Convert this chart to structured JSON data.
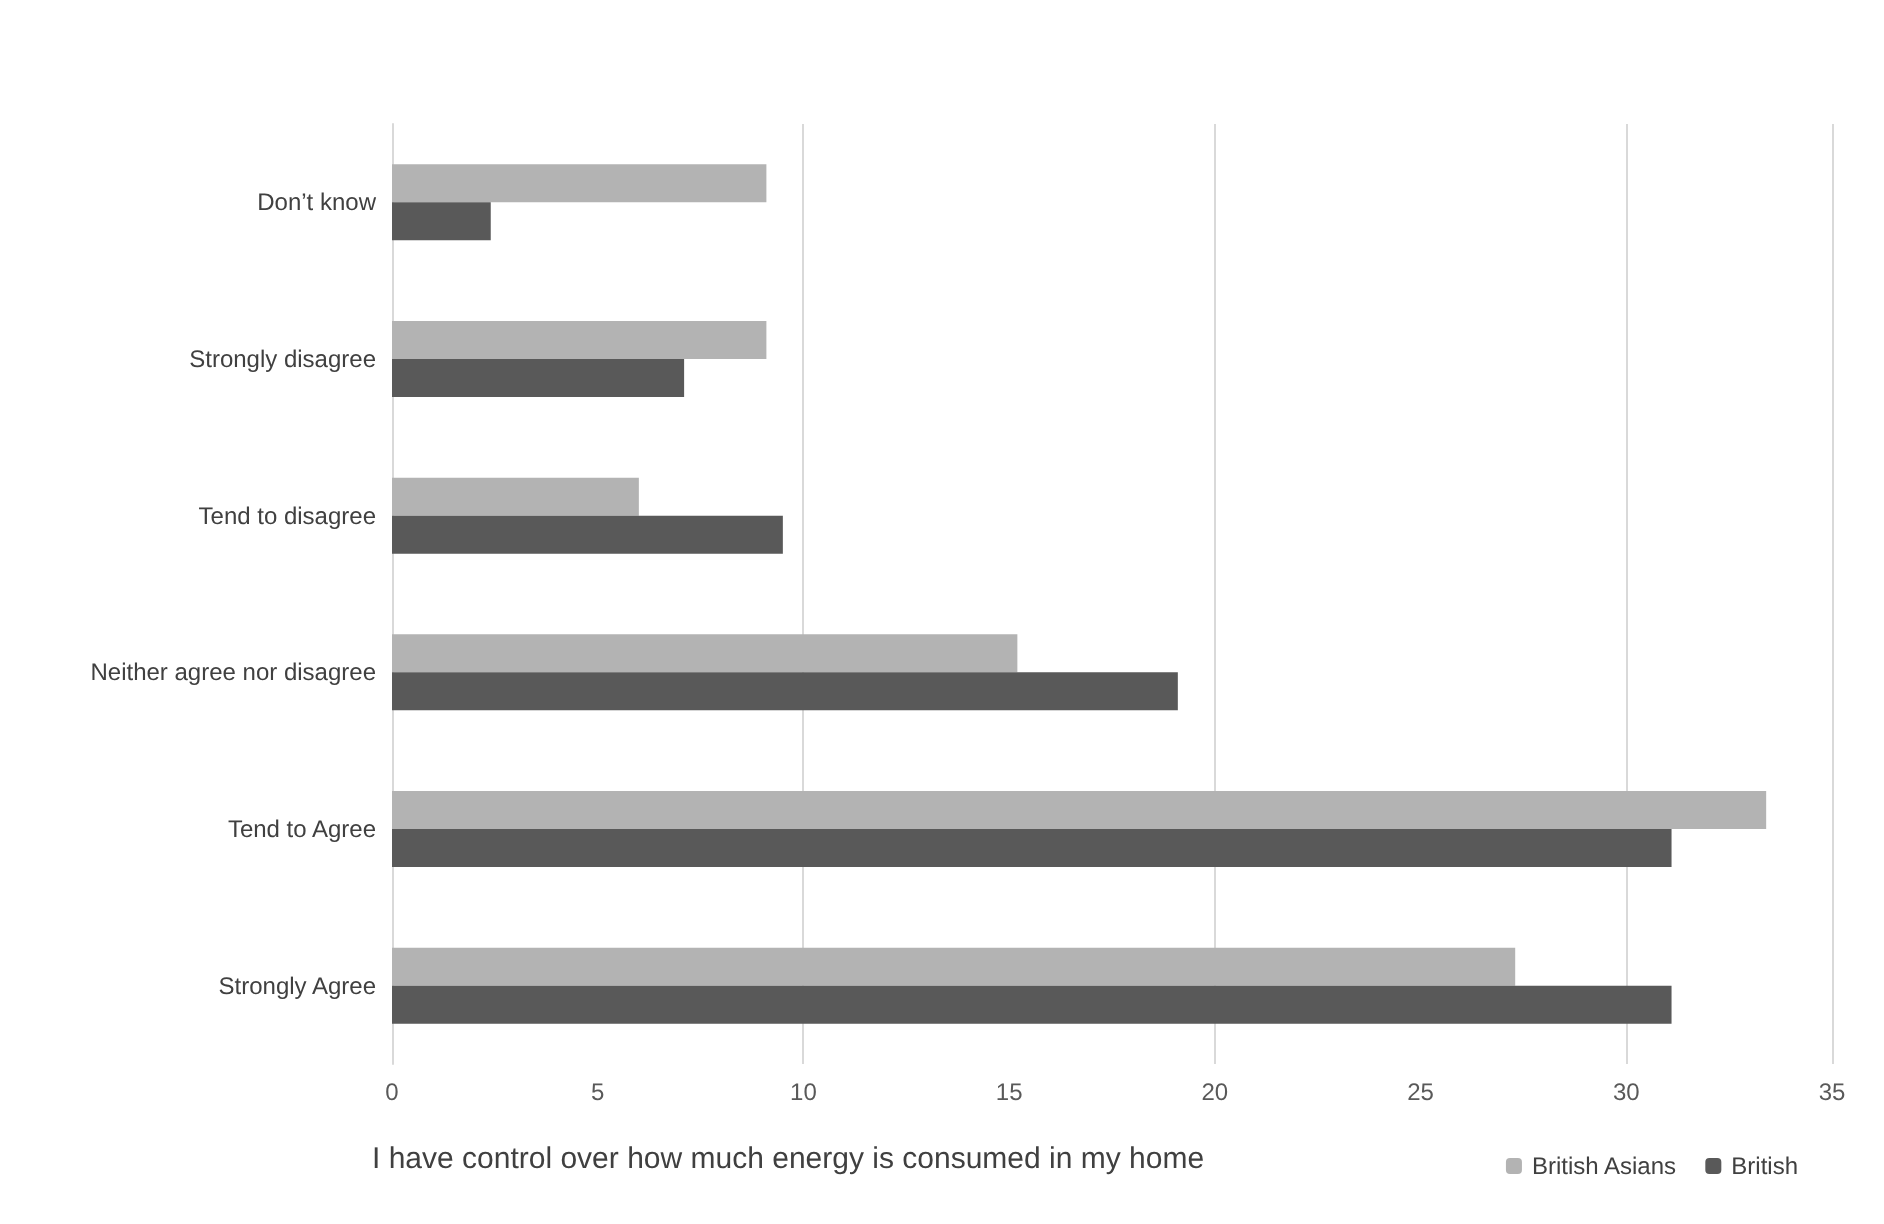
{
  "chart_data": {
    "type": "bar",
    "orientation": "horizontal",
    "xlabel": "I have control over how much energy is consumed in my home",
    "categories": [
      "Don’t know",
      "Strongly disagree",
      "Tend to disagree",
      "Neither agree nor disagree",
      "Tend to Agree",
      "Strongly Agree"
    ],
    "series": [
      {
        "name": "British Asians",
        "color": "#b3b3b3",
        "values": [
          9.1,
          9.1,
          6.0,
          15.2,
          33.4,
          27.3
        ]
      },
      {
        "name": "British",
        "color": "#595959",
        "values": [
          2.4,
          7.1,
          9.5,
          19.1,
          31.1,
          31.1
        ]
      }
    ],
    "xlim": [
      0,
      35
    ],
    "xticks": [
      0,
      5,
      10,
      15,
      20,
      25,
      30,
      35
    ],
    "grid": "x",
    "legend": "bottom right"
  }
}
